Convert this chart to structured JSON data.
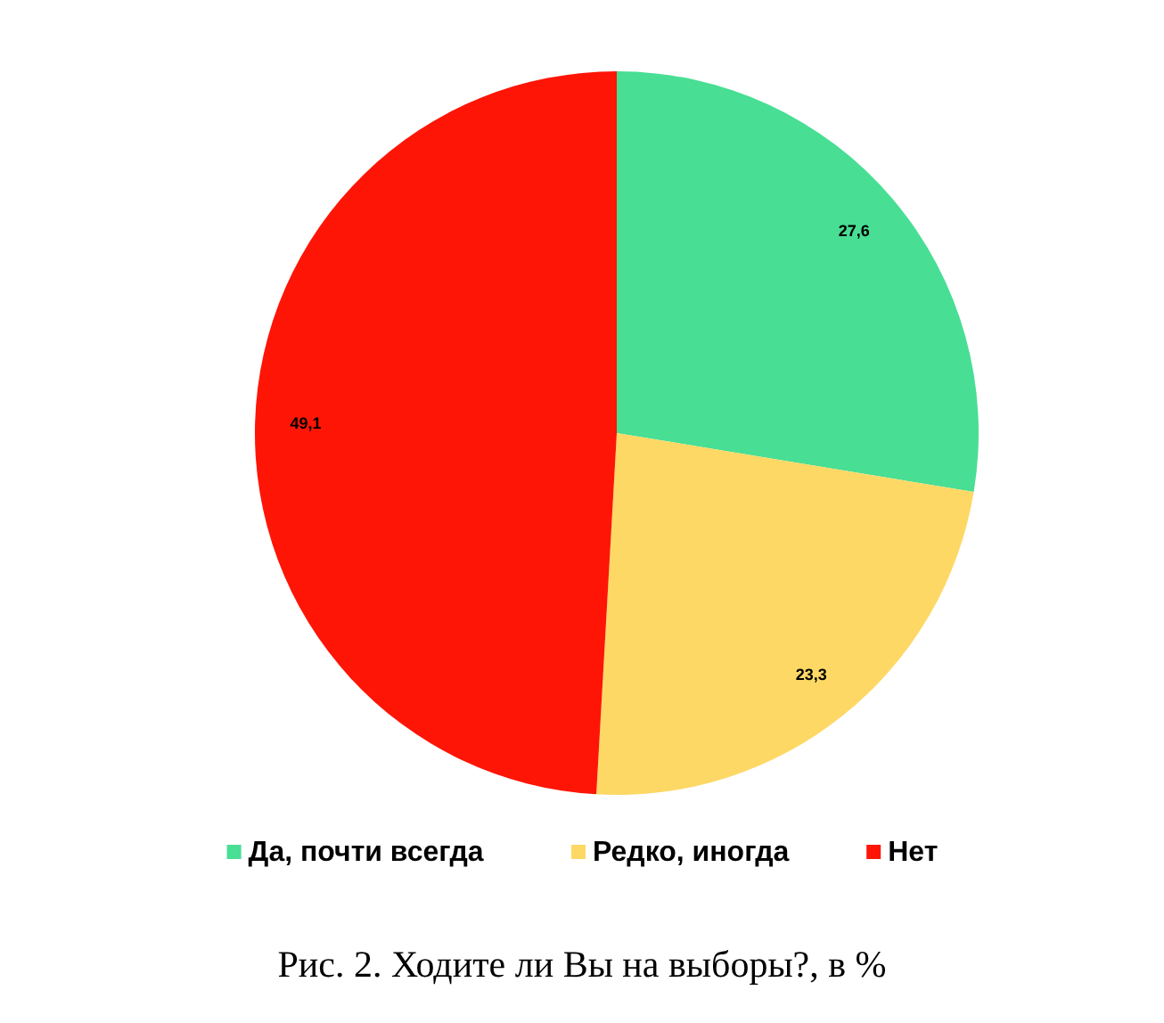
{
  "chart_data": {
    "type": "pie",
    "categories": [
      "Да, почти всегда",
      "Редко, иногда",
      "Нет"
    ],
    "values": [
      27.6,
      23.3,
      49.1
    ],
    "colors": [
      "#48de94",
      "#fdd865",
      "#fe1506"
    ],
    "value_labels": [
      "27,6",
      "23,3",
      "49,1"
    ],
    "legend": "bottom",
    "annotations": [
      "Рис. 2. Ходите ли Вы на выборы?, в %"
    ]
  }
}
